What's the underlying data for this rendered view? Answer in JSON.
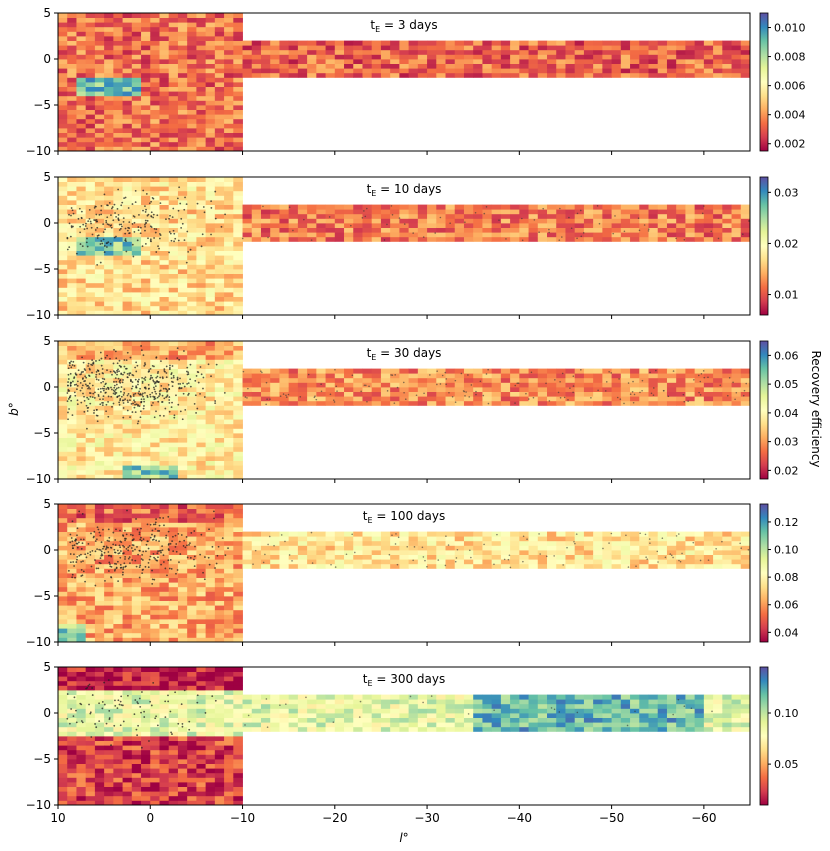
{
  "figure": {
    "xlabel": "l°",
    "ylabel": "b°",
    "colorbar_label": "Recovery efficiency"
  },
  "chart_data": [
    {
      "type": "heatmap",
      "title": "tE = 3 days",
      "title_main": "t",
      "title_sub": "E",
      "title_rest": " = 3 days",
      "xlim": [
        10,
        -65
      ],
      "ylim": [
        -10,
        5
      ],
      "x_ticks": [
        10,
        0,
        -10,
        -20,
        -30,
        -40,
        -50,
        -60
      ],
      "x_tick_labels": [
        "10",
        "0",
        "−10",
        "−20",
        "−30",
        "−40",
        "−50",
        "−60"
      ],
      "y_ticks": [
        5,
        0,
        -5,
        -10
      ],
      "y_tick_labels": [
        "5",
        "0",
        "−5",
        "−10"
      ],
      "regions": {
        "bulge": {
          "l": [
            10,
            -10
          ],
          "b": [
            -10,
            5
          ]
        },
        "disk": {
          "l": [
            -10,
            -65
          ],
          "b": [
            -2,
            2
          ]
        }
      },
      "levels": {
        "bulge": 0.2,
        "disk": 0.18
      },
      "highlight_patch": {
        "l": [
          7.5,
          1.5
        ],
        "b": [
          -4,
          -1.8
        ],
        "level": 0.78
      },
      "top_band": {
        "b": [
          3,
          5
        ],
        "level": 0.2
      },
      "point_density": 0,
      "colorbar": {
        "range": [
          0.0015,
          0.011
        ],
        "ticks": [
          0.002,
          0.004,
          0.006,
          0.008,
          0.01
        ],
        "tick_labels": [
          "0.002",
          "0.004",
          "0.006",
          "0.008",
          "0.010"
        ]
      }
    },
    {
      "type": "heatmap",
      "title": "tE = 10 days",
      "title_main": "t",
      "title_sub": "E",
      "title_rest": " = 10 days",
      "xlim": [
        10,
        -65
      ],
      "ylim": [
        -10,
        5
      ],
      "x_ticks": [
        10,
        0,
        -10,
        -20,
        -30,
        -40,
        -50,
        -60
      ],
      "x_tick_labels": [
        "10",
        "0",
        "−10",
        "−20",
        "−30",
        "−40",
        "−50",
        "−60"
      ],
      "y_ticks": [
        5,
        0,
        -5,
        -10
      ],
      "y_tick_labels": [
        "5",
        "0",
        "−5",
        "−10"
      ],
      "regions": {
        "bulge": {
          "l": [
            10,
            -10
          ],
          "b": [
            -10,
            5
          ]
        },
        "disk": {
          "l": [
            -10,
            -65
          ],
          "b": [
            -2,
            2
          ]
        }
      },
      "levels": {
        "bulge": 0.4,
        "disk": 0.22
      },
      "highlight_patch": {
        "l": [
          7.5,
          1.5
        ],
        "b": [
          -3.5,
          -1.5
        ],
        "level": 0.75
      },
      "top_band": {
        "b": [
          3,
          5
        ],
        "level": 0.42
      },
      "point_density": 0.25,
      "colorbar": {
        "range": [
          0.006,
          0.033
        ],
        "ticks": [
          0.01,
          0.02,
          0.03
        ],
        "tick_labels": [
          "0.01",
          "0.02",
          "0.03"
        ]
      }
    },
    {
      "type": "heatmap",
      "title": "tE = 30 days",
      "title_main": "t",
      "title_sub": "E",
      "title_rest": " = 30 days",
      "xlim": [
        10,
        -65
      ],
      "ylim": [
        -10,
        5
      ],
      "x_ticks": [
        10,
        0,
        -10,
        -20,
        -30,
        -40,
        -50,
        -60
      ],
      "x_tick_labels": [
        "10",
        "0",
        "−10",
        "−20",
        "−30",
        "−40",
        "−50",
        "−60"
      ],
      "y_ticks": [
        5,
        0,
        -5,
        -10
      ],
      "y_tick_labels": [
        "5",
        "0",
        "−5",
        "−10"
      ],
      "regions": {
        "bulge": {
          "l": [
            10,
            -10
          ],
          "b": [
            -10,
            5
          ]
        },
        "disk": {
          "l": [
            -10,
            -65
          ],
          "b": [
            -2,
            2
          ]
        }
      },
      "levels": {
        "bulge": 0.45,
        "disk": 0.25
      },
      "highlight_patch": {
        "l": [
          3,
          -3
        ],
        "b": [
          -10,
          -8.5
        ],
        "level": 0.75
      },
      "top_band": {
        "b": [
          3,
          5
        ],
        "level": 0.3
      },
      "point_density": 0.55,
      "colorbar": {
        "range": [
          0.017,
          0.065
        ],
        "ticks": [
          0.02,
          0.03,
          0.04,
          0.05,
          0.06
        ],
        "tick_labels": [
          "0.02",
          "0.03",
          "0.04",
          "0.05",
          "0.06"
        ]
      }
    },
    {
      "type": "heatmap",
      "title": "tE = 100 days",
      "title_main": "t",
      "title_sub": "E",
      "title_rest": " = 100 days",
      "xlim": [
        10,
        -65
      ],
      "ylim": [
        -10,
        5
      ],
      "x_ticks": [
        10,
        0,
        -10,
        -20,
        -30,
        -40,
        -50,
        -60
      ],
      "x_tick_labels": [
        "10",
        "0",
        "−10",
        "−20",
        "−30",
        "−40",
        "−50",
        "−60"
      ],
      "y_ticks": [
        5,
        0,
        -5,
        -10
      ],
      "y_tick_labels": [
        "5",
        "0",
        "−5",
        "−10"
      ],
      "regions": {
        "bulge": {
          "l": [
            10,
            -10
          ],
          "b": [
            -10,
            5
          ]
        },
        "disk": {
          "l": [
            -10,
            -65
          ],
          "b": [
            -2,
            2
          ]
        }
      },
      "levels": {
        "bulge": 0.3,
        "disk": 0.42
      },
      "highlight_patch": {
        "l": [
          10,
          7
        ],
        "b": [
          -10,
          -8
        ],
        "level": 0.72
      },
      "top_band": {
        "b": [
          3,
          5
        ],
        "level": 0.18
      },
      "point_density": 0.35,
      "colorbar": {
        "range": [
          0.033,
          0.133
        ],
        "ticks": [
          0.04,
          0.06,
          0.08,
          0.1,
          0.12
        ],
        "tick_labels": [
          "0.04",
          "0.06",
          "0.08",
          "0.10",
          "0.12"
        ]
      }
    },
    {
      "type": "heatmap",
      "title": "tE = 300 days",
      "title_main": "t",
      "title_sub": "E",
      "title_rest": " = 300 days",
      "xlim": [
        10,
        -65
      ],
      "ylim": [
        -10,
        5
      ],
      "x_ticks": [
        10,
        0,
        -10,
        -20,
        -30,
        -40,
        -50,
        -60
      ],
      "x_tick_labels": [
        "10",
        "0",
        "−10",
        "−20",
        "−30",
        "−40",
        "−50",
        "−60"
      ],
      "y_ticks": [
        5,
        0,
        -5,
        -10
      ],
      "y_tick_labels": [
        "5",
        "0",
        "−5",
        "−10"
      ],
      "regions": {
        "bulge": {
          "l": [
            10,
            -10
          ],
          "b": [
            -10,
            5
          ]
        },
        "disk": {
          "l": [
            -10,
            -65
          ],
          "b": [
            -2,
            2
          ]
        }
      },
      "levels": {
        "bulge": 0.12,
        "disk": 0.62
      },
      "highlight_patch": {
        "l": [
          -35,
          -60
        ],
        "b": [
          -2,
          2
        ],
        "level": 0.8
      },
      "top_band": {
        "b": [
          2.5,
          5
        ],
        "level": 0.05
      },
      "mid_band": {
        "b": [
          -2.5,
          2.5
        ],
        "level": 0.58
      },
      "point_density": 0.1,
      "colorbar": {
        "range": [
          0.01,
          0.145
        ],
        "ticks": [
          0.05,
          0.1
        ],
        "tick_labels": [
          "0.05",
          "0.10"
        ]
      }
    }
  ]
}
